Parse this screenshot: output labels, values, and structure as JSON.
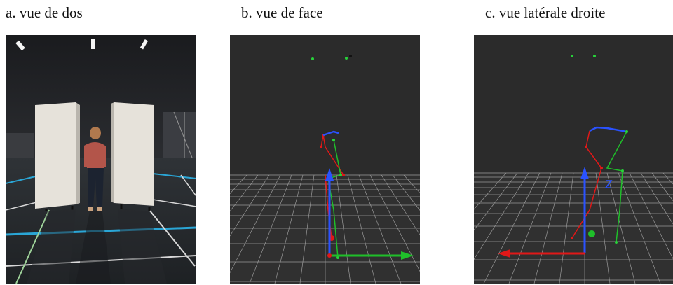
{
  "panels": [
    {
      "id": "a",
      "caption": "a. vue de dos"
    },
    {
      "id": "b",
      "caption": "b. vue de face"
    },
    {
      "id": "c",
      "caption": "c. vue latérale droite"
    }
  ],
  "colors": {
    "viewport_bg": "#2b2b2b",
    "grid_line": "#c8c8c8",
    "axis_x_red": "#e01818",
    "axis_y_green": "#1fbf2a",
    "axis_z_blue": "#2a52ff",
    "marker_green": "#27d23a",
    "photo_floor": "#2e3236",
    "panel_white": "#e6e2da",
    "floor_line_blue": "#2aa6d6"
  }
}
